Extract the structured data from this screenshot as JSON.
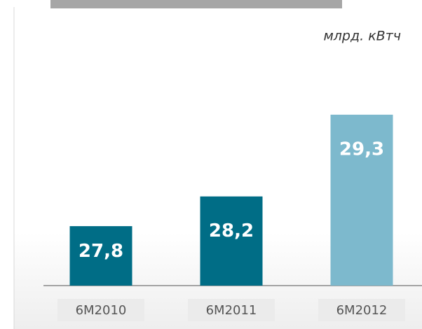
{
  "chart_data": {
    "type": "bar",
    "unit": "млрд. кВтч",
    "categories": [
      "6M2010",
      "6M2011",
      "6M2012"
    ],
    "values": [
      27.8,
      28.2,
      29.3
    ],
    "value_labels": [
      "27,8",
      "28,2",
      "29,3"
    ],
    "colors": [
      "#006d86",
      "#006d86",
      "#7db9cd"
    ],
    "ylim": [
      27,
      29.6
    ]
  }
}
